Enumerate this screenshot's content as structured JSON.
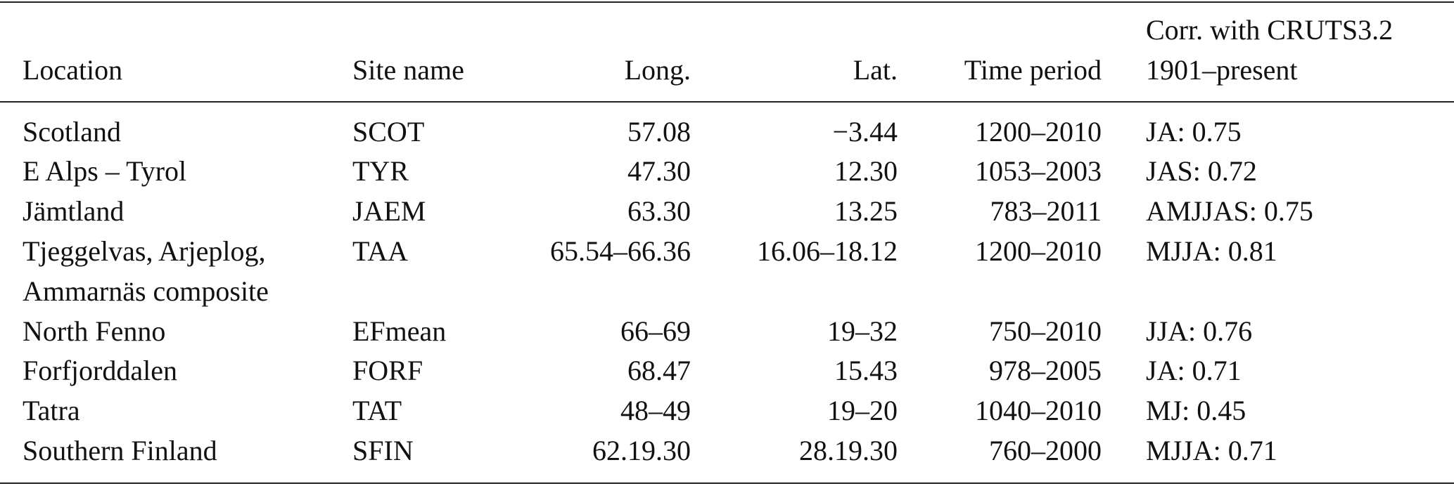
{
  "table": {
    "header": [
      "Location",
      "Site name",
      "Long.",
      "Lat.",
      "Time period",
      [
        "Corr. with CRUTS3.2",
        "1901–present"
      ]
    ],
    "rows": [
      [
        "Scotland",
        "SCOT",
        "57.08",
        "−3.44",
        "1200–2010",
        "JA: 0.75"
      ],
      [
        "E Alps – Tyrol",
        "TYR",
        "47.30",
        "12.30",
        "1053–2003",
        "JAS: 0.72"
      ],
      [
        "Jämtland",
        "JAEM",
        "63.30",
        "13.25",
        "783–2011",
        "AMJJAS: 0.75"
      ],
      [
        [
          "Tjeggelvas, Arjeplog,",
          "Ammarnäs composite"
        ],
        "TAA",
        "65.54–66.36",
        "16.06–18.12",
        "1200–2010",
        "MJJA: 0.81"
      ],
      [
        "North Fenno",
        "EFmean",
        "66–69",
        "19–32",
        "750–2010",
        "JJA: 0.76"
      ],
      [
        "Forfjorddalen",
        "FORF",
        "68.47",
        "15.43",
        "978–2005",
        "JA: 0.71"
      ],
      [
        "Tatra",
        "TAT",
        "48–49",
        "19–20",
        "1040–2010",
        "MJ: 0.45"
      ],
      [
        "Southern Finland",
        "SFIN",
        "62.19.30",
        "28.19.30",
        "760–2000",
        "MJJA: 0.71"
      ]
    ]
  }
}
